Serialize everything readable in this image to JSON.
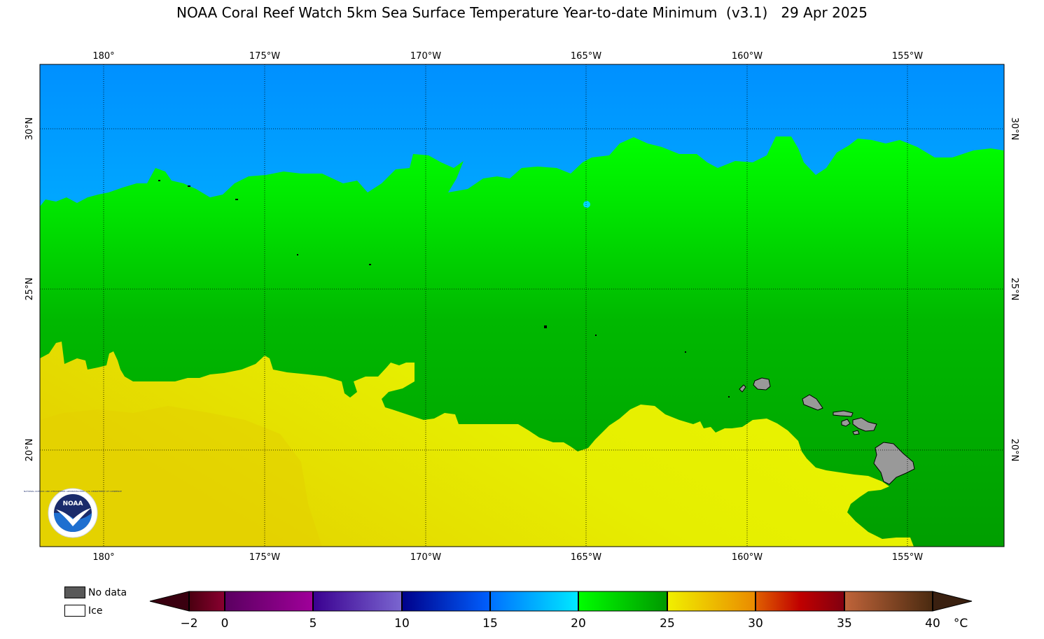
{
  "title": "NOAA Coral Reef Watch 5km Sea Surface Temperature Year-to-date Minimum  (v3.1)   29 Apr 2025",
  "map": {
    "lon_labels": [
      "180°",
      "175°W",
      "170°W",
      "165°W",
      "160°W",
      "155°W"
    ],
    "lat_labels": [
      "30°N",
      "25°N",
      "20°N"
    ],
    "logo": {
      "text": "NOAA",
      "ring_text": "NATIONAL OCEANIC AND ATMOSPHERIC ADMINISTRATION · U.S. DEPARTMENT OF COMMERCE"
    }
  },
  "legend": {
    "no_data_label": "No data",
    "no_data_color": "#595959",
    "ice_label": "Ice",
    "ice_color": "#ffffff",
    "tick_labels": [
      "−2",
      "0",
      "5",
      "10",
      "15",
      "20",
      "25",
      "30",
      "35",
      "40"
    ],
    "unit": "°C"
  },
  "colors": {
    "cool_blue": "#0096ff",
    "cyan": "#00dcff",
    "bright_green": "#00ff00",
    "mid_green": "#00c800",
    "dark_green": "#00a000",
    "yellow": "#e8f000",
    "gold": "#e6d200",
    "land": "#999999"
  }
}
